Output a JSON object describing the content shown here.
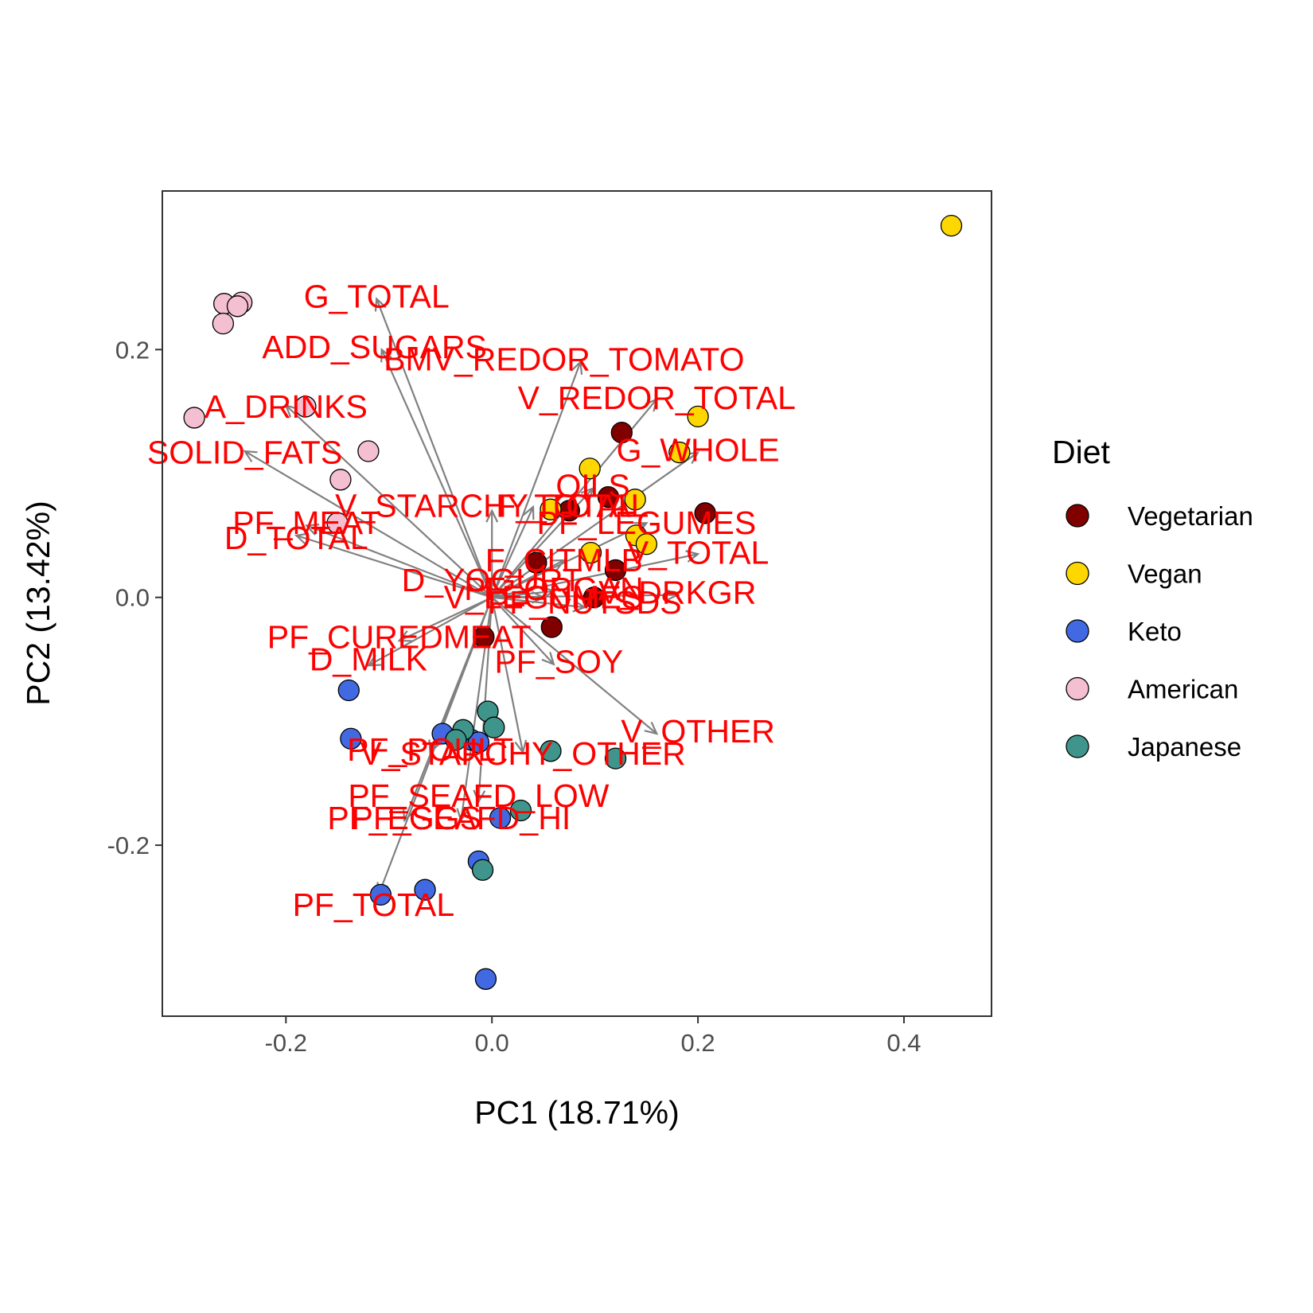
{
  "chart_data": {
    "type": "scatter",
    "subtype": "pca-biplot",
    "xlabel": "PC1 (18.71%)",
    "ylabel": "PC2 (13.42%)",
    "xlim": [
      -0.32,
      0.485
    ],
    "ylim": [
      -0.338,
      0.328
    ],
    "x_ticks": [
      -0.2,
      0.0,
      0.2,
      0.4
    ],
    "x_tick_labels": [
      "-0.2",
      "0.0",
      "0.2",
      "0.4"
    ],
    "y_ticks": [
      -0.2,
      0.0,
      0.2
    ],
    "y_tick_labels": [
      "-0.2",
      "0.0",
      "0.2"
    ],
    "grid": false,
    "legend_position": "right",
    "legend_title": "Diet",
    "arrow_color": "#808080",
    "label_color": "#ff0000",
    "series": [
      {
        "name": "Vegetarian",
        "color": "#800000",
        "points": [
          [
            0.126,
            0.133
          ],
          [
            0.113,
            0.081
          ],
          [
            0.075,
            0.07
          ],
          [
            0.043,
            0.028
          ],
          [
            0.12,
            0.022
          ],
          [
            0.099,
            0.0
          ],
          [
            0.058,
            -0.024
          ],
          [
            -0.008,
            -0.032
          ],
          [
            0.207,
            0.068
          ]
        ]
      },
      {
        "name": "Vegan",
        "color": "#ffd700",
        "points": [
          [
            0.446,
            0.3
          ],
          [
            0.2,
            0.146
          ],
          [
            0.182,
            0.117
          ],
          [
            0.095,
            0.104
          ],
          [
            0.139,
            0.079
          ],
          [
            0.057,
            0.071
          ],
          [
            0.14,
            0.05
          ],
          [
            0.15,
            0.043
          ],
          [
            0.096,
            0.036
          ]
        ]
      },
      {
        "name": "Keto",
        "color": "#4169e1",
        "points": [
          [
            -0.139,
            -0.075
          ],
          [
            -0.137,
            -0.114
          ],
          [
            -0.048,
            -0.11
          ],
          [
            -0.02,
            -0.115
          ],
          [
            -0.013,
            -0.117
          ],
          [
            0.008,
            -0.178
          ],
          [
            -0.013,
            -0.213
          ],
          [
            -0.065,
            -0.236
          ],
          [
            -0.108,
            -0.24
          ],
          [
            -0.006,
            -0.308
          ]
        ]
      },
      {
        "name": "American",
        "color": "#f5bfd2",
        "points": [
          [
            -0.26,
            0.237
          ],
          [
            -0.243,
            0.238
          ],
          [
            -0.247,
            0.235
          ],
          [
            -0.261,
            0.221
          ],
          [
            -0.289,
            0.145
          ],
          [
            -0.181,
            0.154
          ],
          [
            -0.12,
            0.118
          ],
          [
            -0.147,
            0.095
          ],
          [
            -0.15,
            0.06
          ]
        ]
      },
      {
        "name": "Japanese",
        "color": "#3f958b",
        "points": [
          [
            -0.004,
            -0.092
          ],
          [
            0.002,
            -0.105
          ],
          [
            -0.028,
            -0.107
          ],
          [
            -0.035,
            -0.115
          ],
          [
            0.057,
            -0.124
          ],
          [
            0.12,
            -0.13
          ],
          [
            0.028,
            -0.172
          ],
          [
            -0.009,
            -0.22
          ]
        ]
      }
    ],
    "loadings": [
      {
        "label": "G_TOTAL",
        "x": -0.112,
        "y": 0.241,
        "lx": -0.112,
        "ly": 0.241
      },
      {
        "label": "ADD_SUGARS",
        "x": -0.107,
        "y": 0.2,
        "lx": -0.114,
        "ly": 0.2
      },
      {
        "label": "BMV_REDOR_TOMATO",
        "x": 0.086,
        "y": 0.19,
        "lx": 0.07,
        "ly": 0.19
      },
      {
        "label": "V_REDOR_TOTAL",
        "x": 0.16,
        "y": 0.16,
        "lx": 0.16,
        "ly": 0.159
      },
      {
        "label": "A_DRINKS",
        "x": -0.2,
        "y": 0.155,
        "lx": -0.2,
        "ly": 0.152
      },
      {
        "label": "G_WHOLE",
        "x": 0.2,
        "y": 0.117,
        "lx": 0.2,
        "ly": 0.117
      },
      {
        "label": "SOLID_FATS",
        "x": -0.24,
        "y": 0.118,
        "lx": -0.24,
        "ly": 0.115
      },
      {
        "label": "OILS",
        "x": 0.098,
        "y": 0.088,
        "lx": 0.098,
        "ly": 0.088
      },
      {
        "label": "V_STARCHY_TOTAL",
        "x": 0.0,
        "y": 0.07,
        "lx": 0.0,
        "ly": 0.072
      },
      {
        "label": "F_TOTAL",
        "x": 0.04,
        "y": 0.073,
        "lx": 0.072,
        "ly": 0.072
      },
      {
        "label": "PF_LEGUMES",
        "x": 0.15,
        "y": 0.06,
        "lx": 0.15,
        "ly": 0.058
      },
      {
        "label": "PF_MEAT",
        "x": -0.18,
        "y": 0.058,
        "lx": -0.18,
        "ly": 0.058
      },
      {
        "label": "D_TOTAL",
        "x": -0.19,
        "y": 0.05,
        "lx": -0.19,
        "ly": 0.046
      },
      {
        "label": "V_TOTAL",
        "x": 0.2,
        "y": 0.035,
        "lx": 0.2,
        "ly": 0.034
      },
      {
        "label": "F_CITMLB",
        "x": 0.07,
        "y": 0.03,
        "lx": 0.07,
        "ly": 0.028
      },
      {
        "label": "D_YOGURT",
        "x": 0.0,
        "y": 0.015,
        "lx": 0.0,
        "ly": 0.012
      },
      {
        "label": "PF_ORGAN",
        "x": 0.06,
        "y": 0.005,
        "lx": 0.06,
        "ly": 0.005
      },
      {
        "label": "V_DRKGR",
        "x": 0.18,
        "y": 0.002,
        "lx": 0.18,
        "ly": 0.002
      },
      {
        "label": "PF_NUTSDS",
        "x": 0.09,
        "y": -0.008,
        "lx": 0.09,
        "ly": -0.006
      },
      {
        "label": "V_LEGUMES",
        "x": 0.05,
        "y": 0.0,
        "lx": 0.05,
        "ly": -0.002
      },
      {
        "label": "PF_CUREDMEAT",
        "x": -0.09,
        "y": -0.035,
        "lx": -0.09,
        "ly": -0.034
      },
      {
        "label": "D_MILK",
        "x": -0.12,
        "y": -0.055,
        "lx": -0.12,
        "ly": -0.052
      },
      {
        "label": "PF_SOY",
        "x": 0.06,
        "y": -0.054,
        "lx": 0.065,
        "ly": -0.054
      },
      {
        "label": "V_OTHER",
        "x": 0.16,
        "y": -0.11,
        "lx": 0.2,
        "ly": -0.11
      },
      {
        "label": "V_STARCHY_OTHER",
        "x": 0.03,
        "y": -0.125,
        "lx": 0.03,
        "ly": -0.128
      },
      {
        "label": "PF_POULT",
        "x": -0.06,
        "y": -0.125,
        "lx": -0.06,
        "ly": -0.125
      },
      {
        "label": "PF_SEAFD_LOW",
        "x": -0.013,
        "y": -0.165,
        "lx": -0.013,
        "ly": -0.162
      },
      {
        "label": "PF_SEAFD_HI",
        "x": -0.03,
        "y": -0.18,
        "lx": -0.03,
        "ly": -0.18
      },
      {
        "label": "PF_EGGS",
        "x": -0.085,
        "y": -0.18,
        "lx": -0.085,
        "ly": -0.18
      },
      {
        "label": "PF_TOTAL",
        "x": -0.11,
        "y": -0.24,
        "lx": -0.115,
        "ly": -0.25
      }
    ]
  }
}
